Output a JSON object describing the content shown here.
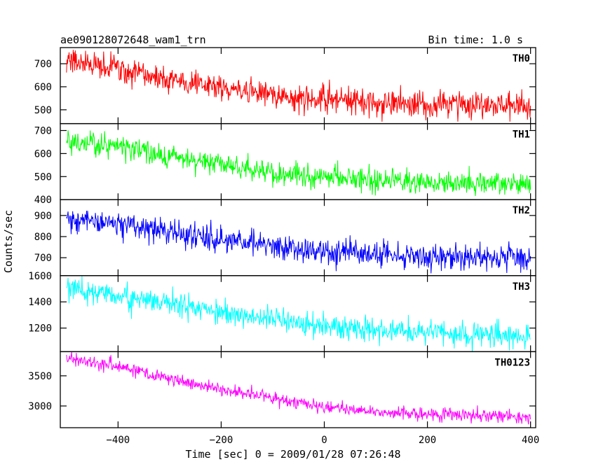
{
  "header": {
    "title": "ae090128072648_wam1_trn",
    "bin_time": "Bin time: 1.0 s"
  },
  "chart_data": {
    "type": "line",
    "title": "ae090128072648_wam1_trn",
    "subtitle": "Bin time: 1.0 s",
    "xlabel": "Time [sec] 0 = 2009/01/28 07:26:48",
    "ylabel": "Counts/sec",
    "xlim": [
      -512,
      410
    ],
    "x_ticks": [
      -400,
      -200,
      0,
      200,
      400
    ],
    "x_tick_labels": [
      "−400",
      "−200",
      "0",
      "200",
      "400"
    ],
    "x_range": [
      -500,
      400
    ],
    "bin_time_s": 1.0,
    "panels": [
      {
        "name": "TH0",
        "color": "#ff0000",
        "ylim": [
          440,
          770
        ],
        "y_ticks": [
          500,
          600,
          700
        ],
        "y_tick_labels": [
          "500",
          "600",
          "700"
        ],
        "trend": [
          [
            -500,
            710
          ],
          [
            -400,
            680
          ],
          [
            -300,
            630
          ],
          [
            -200,
            595
          ],
          [
            -100,
            565
          ],
          [
            0,
            545
          ],
          [
            100,
            530
          ],
          [
            200,
            525
          ],
          [
            300,
            520
          ],
          [
            400,
            515
          ]
        ],
        "noise_sd": 28
      },
      {
        "name": "TH1",
        "color": "#00ff00",
        "ylim": [
          400,
          730
        ],
        "y_ticks": [
          400,
          500,
          600,
          700
        ],
        "y_tick_labels": [
          "400",
          "500",
          "600",
          "700"
        ],
        "trend": [
          [
            -500,
            655
          ],
          [
            -400,
            630
          ],
          [
            -300,
            590
          ],
          [
            -200,
            550
          ],
          [
            -100,
            520
          ],
          [
            0,
            500
          ],
          [
            100,
            485
          ],
          [
            200,
            475
          ],
          [
            300,
            470
          ],
          [
            400,
            470
          ]
        ],
        "noise_sd": 25
      },
      {
        "name": "TH2",
        "color": "#0000ff",
        "ylim": [
          615,
          975
        ],
        "y_ticks": [
          700,
          800,
          900
        ],
        "y_tick_labels": [
          "700",
          "800",
          "900"
        ],
        "trend": [
          [
            -500,
            885
          ],
          [
            -400,
            860
          ],
          [
            -300,
            820
          ],
          [
            -200,
            785
          ],
          [
            -100,
            755
          ],
          [
            0,
            730
          ],
          [
            100,
            715
          ],
          [
            200,
            705
          ],
          [
            300,
            700
          ],
          [
            400,
            695
          ]
        ],
        "noise_sd": 30
      },
      {
        "name": "TH3",
        "color": "#00ffff",
        "ylim": [
          1020,
          1600
        ],
        "y_ticks": [
          1200,
          1400,
          1600
        ],
        "y_tick_labels": [
          "1200",
          "1400",
          "1600"
        ],
        "trend": [
          [
            -500,
            1510
          ],
          [
            -400,
            1450
          ],
          [
            -300,
            1390
          ],
          [
            -200,
            1325
          ],
          [
            -100,
            1265
          ],
          [
            0,
            1215
          ],
          [
            100,
            1185
          ],
          [
            200,
            1165
          ],
          [
            300,
            1150
          ],
          [
            400,
            1140
          ]
        ],
        "noise_sd": 45
      },
      {
        "name": "TH0123",
        "color": "#ff00ff",
        "ylim": [
          2640,
          3900
        ],
        "y_ticks": [
          3000,
          3500
        ],
        "y_tick_labels": [
          "3000",
          "3500"
        ],
        "trend": [
          [
            -500,
            3800
          ],
          [
            -400,
            3650
          ],
          [
            -300,
            3450
          ],
          [
            -200,
            3280
          ],
          [
            -100,
            3120
          ],
          [
            0,
            2990
          ],
          [
            100,
            2900
          ],
          [
            200,
            2860
          ],
          [
            300,
            2830
          ],
          [
            400,
            2810
          ]
        ],
        "noise_sd": 55
      }
    ]
  }
}
